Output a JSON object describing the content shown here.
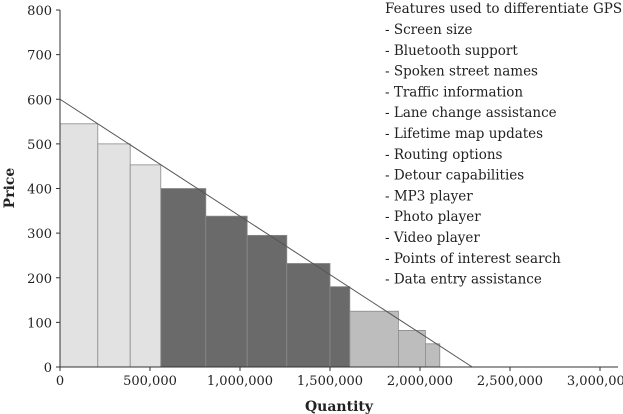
{
  "chart_data": {
    "type": "bar",
    "xlabel": "Quantity",
    "ylabel": "Price",
    "xlim": [
      0,
      3100000
    ],
    "ylim": [
      0,
      800
    ],
    "x_ticks": [
      {
        "value": 0,
        "label": "0"
      },
      {
        "value": 500000,
        "label": "500,000"
      },
      {
        "value": 1000000,
        "label": "1,000,000"
      },
      {
        "value": 1500000,
        "label": "1,500,000"
      },
      {
        "value": 2000000,
        "label": "2,000,000"
      },
      {
        "value": 2500000,
        "label": "2,500,000"
      },
      {
        "value": 3000000,
        "label": "3,000,000"
      }
    ],
    "y_ticks": [
      {
        "value": 0,
        "label": "0"
      },
      {
        "value": 100,
        "label": "100"
      },
      {
        "value": 200,
        "label": "200"
      },
      {
        "value": 300,
        "label": "300"
      },
      {
        "value": 400,
        "label": "400"
      },
      {
        "value": 500,
        "label": "500"
      },
      {
        "value": 600,
        "label": "600"
      },
      {
        "value": 700,
        "label": "700"
      },
      {
        "value": 800,
        "label": "800"
      }
    ],
    "demand_line": {
      "x": [
        0,
        2290000
      ],
      "y": [
        600,
        0
      ]
    },
    "bars": [
      {
        "x0": 0,
        "x1": 210000,
        "price": 545,
        "group": "light"
      },
      {
        "x0": 210000,
        "x1": 390000,
        "price": 500,
        "group": "light"
      },
      {
        "x0": 390000,
        "x1": 560000,
        "price": 453,
        "group": "light"
      },
      {
        "x0": 560000,
        "x1": 810000,
        "price": 400,
        "group": "dark"
      },
      {
        "x0": 810000,
        "x1": 1040000,
        "price": 338,
        "group": "dark"
      },
      {
        "x0": 1040000,
        "x1": 1260000,
        "price": 295,
        "group": "dark"
      },
      {
        "x0": 1260000,
        "x1": 1500000,
        "price": 232,
        "group": "dark"
      },
      {
        "x0": 1500000,
        "x1": 1610000,
        "price": 180,
        "group": "dark"
      },
      {
        "x0": 1610000,
        "x1": 1880000,
        "price": 125,
        "group": "mid"
      },
      {
        "x0": 1880000,
        "x1": 2030000,
        "price": 82,
        "group": "mid"
      },
      {
        "x0": 2030000,
        "x1": 2110000,
        "price": 52,
        "group": "mid"
      }
    ],
    "colors": {
      "light": "#e2e2e2",
      "dark": "#6a6a6a",
      "mid": "#bdbdbd",
      "stroke": "#8a8a8a",
      "line": "#555555",
      "axis": "#333333"
    },
    "grid": false,
    "legend_position": "top-right",
    "legend": {
      "title": "Features used to differentiate GPS",
      "items": [
        "- Screen size",
        "- Bluetooth support",
        "- Spoken street names",
        "- Traffic information",
        "- Lane change assistance",
        "- Lifetime map updates",
        "- Routing options",
        "- Detour capabilities",
        "- MP3 player",
        "- Photo player",
        "- Video player",
        "- Points of interest search",
        "- Data entry assistance"
      ]
    }
  }
}
